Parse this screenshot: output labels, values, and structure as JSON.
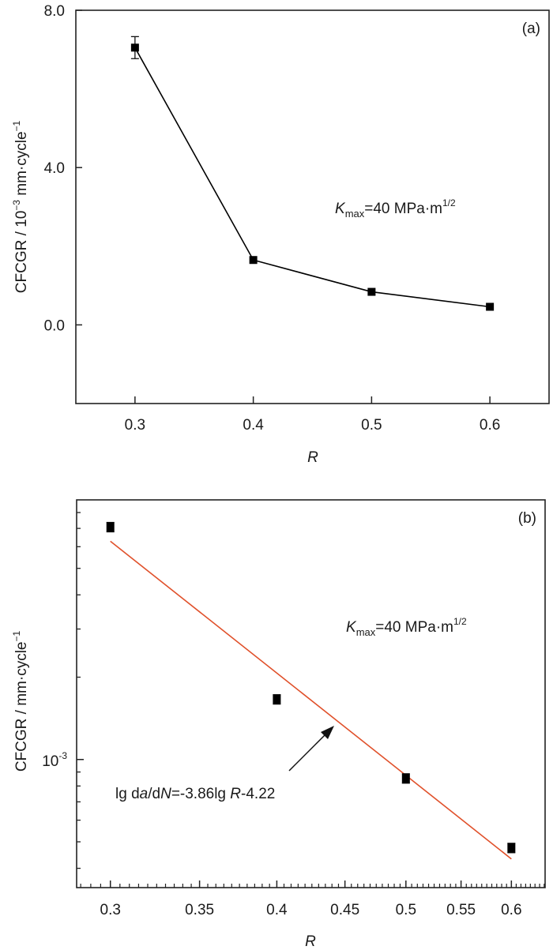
{
  "chart_data": [
    {
      "type": "line",
      "panel_label": "(a)",
      "xlabel": "R",
      "ylabel": {
        "prefix": "CFCGR / 10",
        "exp": "−3",
        "unit": " mm·cycle",
        "unit_exp": "−1"
      },
      "xlim": [
        0.25,
        0.65
      ],
      "ylim": [
        -2.0,
        8.0
      ],
      "x_scale": "linear",
      "y_scale": "linear",
      "x_ticks": [
        0.3,
        0.4,
        0.5,
        0.6
      ],
      "x_tick_labels": [
        "0.3",
        "0.4",
        "0.5",
        "0.6"
      ],
      "y_ticks": [
        0.0,
        4.0,
        8.0
      ],
      "y_tick_labels": [
        "0.0",
        "4.0",
        "8.0"
      ],
      "grid": false,
      "annotation": {
        "symbol": "K",
        "subscript": "max",
        "text": "=40 MPa·m",
        "superscript": "1/2"
      },
      "series": [
        {
          "name": "CFCGR",
          "marker": "square",
          "color": "#000000",
          "x": [
            0.3,
            0.4,
            0.5,
            0.6
          ],
          "y": [
            7.05,
            1.65,
            0.84,
            0.46
          ],
          "error": [
            0.28,
            0.05,
            0.05,
            0.05
          ]
        }
      ]
    },
    {
      "type": "scatter",
      "panel_label": "(b)",
      "xlabel": "R",
      "ylabel": {
        "prefix": "CFCGR / mm·cycle",
        "exp": "−1"
      },
      "xlim": [
        0.283,
        0.636
      ],
      "ylim": [
        0.00034,
        0.0089
      ],
      "x_scale": "log",
      "y_scale": "log",
      "x_ticks": [
        0.3,
        0.35,
        0.4,
        0.45,
        0.5,
        0.55,
        0.6
      ],
      "x_tick_labels": [
        "0.3",
        "0.35",
        "0.4",
        "0.45",
        "0.5",
        "0.55",
        "0.6"
      ],
      "y_ticks": [
        0.001
      ],
      "y_tick_labels": [
        {
          "base": "10",
          "exp": "-3"
        }
      ],
      "grid": false,
      "annotation": {
        "symbol": "K",
        "subscript": "max",
        "text": "=40 MPa·m",
        "superscript": "1/2"
      },
      "fit": {
        "label_parts": [
          "lg d",
          "a",
          "/d",
          "N",
          "=-3.86lg ",
          "R",
          "-4.22"
        ],
        "slope": -3.86,
        "intercept": -4.22,
        "x_range": [
          0.3,
          0.6
        ],
        "color": "#e0502a"
      },
      "series": [
        {
          "name": "CFCGR",
          "marker": "square",
          "color": "#000000",
          "x": [
            0.3,
            0.4,
            0.5,
            0.6
          ],
          "y": [
            0.00708,
            0.00166,
            0.000853,
            0.000475
          ],
          "error_frac": [
            0.04,
            0.04,
            0.04,
            0.04
          ]
        }
      ]
    }
  ]
}
